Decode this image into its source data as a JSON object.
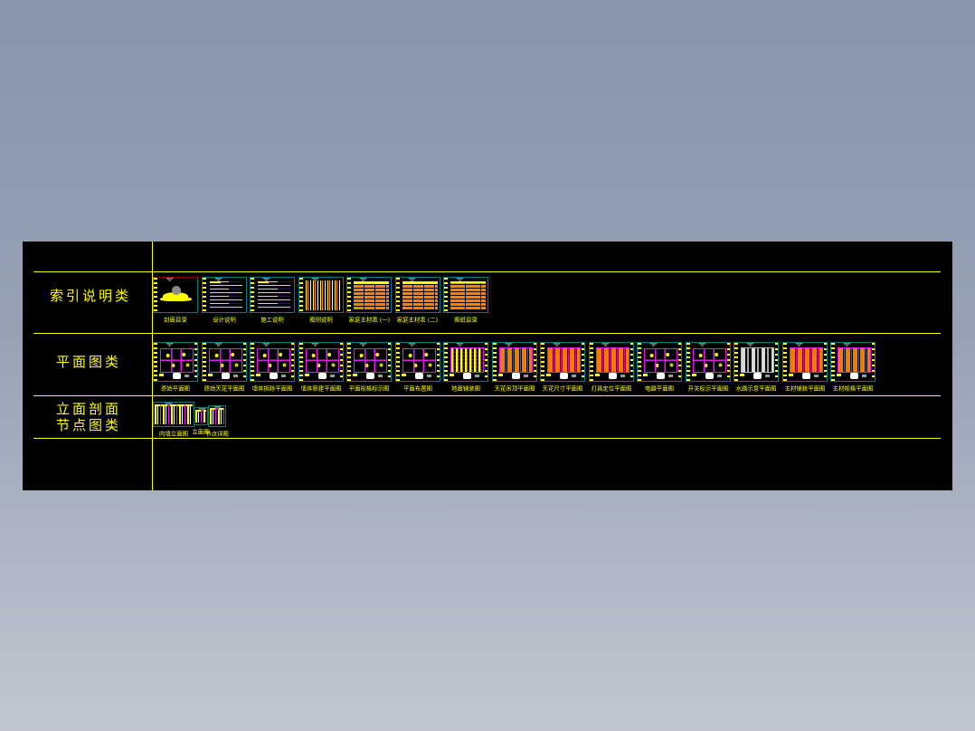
{
  "app": {
    "description": "CAD drawing sheet-set index panel",
    "colors": {
      "desktop_top": "#8795aa",
      "desktop_bottom": "#c2c7d1",
      "panel_bg": "#000000",
      "accent_yellow": "#ffff00",
      "plan_magenta": "#ff00ff",
      "table_orange": "#ff8000",
      "frame_teal": "#0e7878",
      "pin_gray": "#8c8c8c"
    }
  },
  "rows": [
    {
      "label": "索引说明类",
      "label_lines": [
        "索引说明类"
      ],
      "sheets": [
        {
          "caption": "封面目录",
          "style": "cover"
        },
        {
          "caption": "设计说明",
          "style": "text"
        },
        {
          "caption": "施工说明",
          "style": "text"
        },
        {
          "caption": "图例说明",
          "style": "legend"
        },
        {
          "caption": "家庭主材表 (一)",
          "style": "table"
        },
        {
          "caption": "家庭主材表 (二)",
          "style": "table"
        },
        {
          "caption": "图纸目录",
          "style": "catalog"
        }
      ]
    },
    {
      "label": "平面图类",
      "label_lines": [
        "平面图类"
      ],
      "sheets": [
        {
          "caption": "原始平面图",
          "style": "plan"
        },
        {
          "caption": "原始天花平面图",
          "style": "plan"
        },
        {
          "caption": "墙体拆除平面图",
          "style": "plan"
        },
        {
          "caption": "墙体新建平面图",
          "style": "plan"
        },
        {
          "caption": "平面规格标示图",
          "style": "plan"
        },
        {
          "caption": "平面布置图",
          "style": "plan"
        },
        {
          "caption": "地面铺装图",
          "style": "dense"
        },
        {
          "caption": "天花吊顶平面图",
          "style": "ceiling"
        },
        {
          "caption": "天花尺寸平面图",
          "style": "ceiling"
        },
        {
          "caption": "灯具定位平面图",
          "style": "ceiling"
        },
        {
          "caption": "电路平面图",
          "style": "plan"
        },
        {
          "caption": "开关标示平面图",
          "style": "plan"
        },
        {
          "caption": "水路示意平面图",
          "style": "gray"
        },
        {
          "caption": "主材铺装平面图",
          "style": "ceiling"
        },
        {
          "caption": "主材规格平面图",
          "style": "ceiling"
        }
      ]
    },
    {
      "label": "立面剖面 节点图类",
      "label_lines": [
        "立面剖面",
        "节点图类"
      ],
      "sheets": [
        {
          "caption": "内墙立面图",
          "style": "elev"
        },
        {
          "caption": "立面图",
          "style": "elevsm"
        },
        {
          "caption": "节点详图",
          "style": "node"
        }
      ]
    }
  ]
}
